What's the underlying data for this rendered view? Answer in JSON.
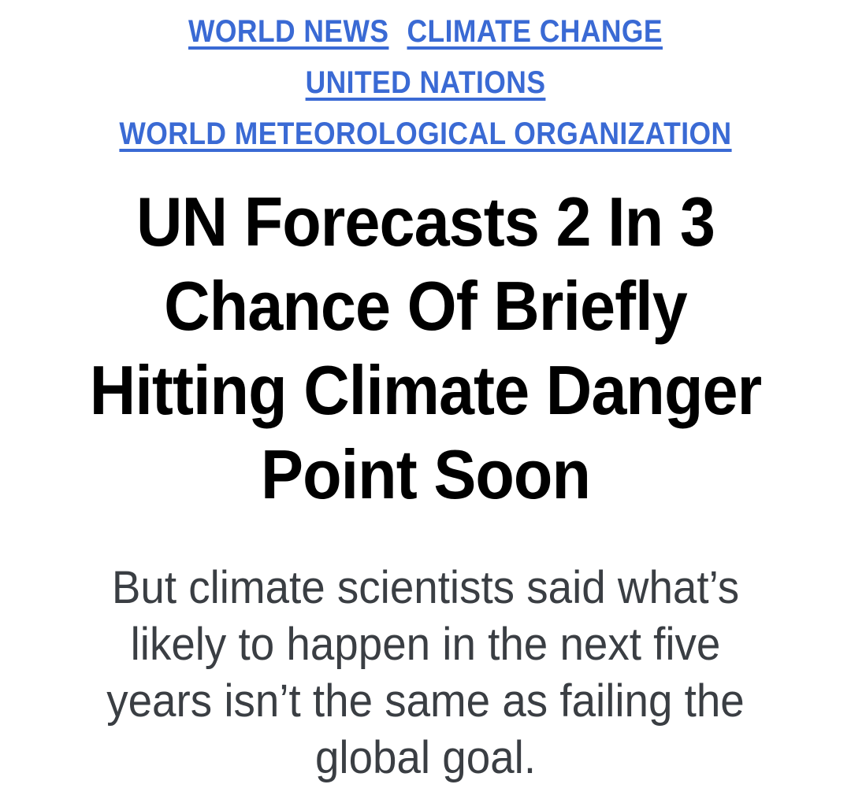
{
  "page": {
    "background_color": "#ffffff"
  },
  "tags": {
    "link_color": "#3A6AD4",
    "items": [
      {
        "label": "WORLD NEWS"
      },
      {
        "label": "CLIMATE CHANGE"
      },
      {
        "label": "UNITED NATIONS"
      },
      {
        "label": "WORLD METEOROLOGICAL ORGANIZATION"
      }
    ]
  },
  "headline": {
    "color": "#000000",
    "lines": [
      "UN Forecasts 2 In 3",
      "Chance Of Briefly",
      "Hitting Climate Danger",
      "Point Soon"
    ]
  },
  "dek": {
    "color": "#3A3E43",
    "lines": [
      "But climate scientists said what’s",
      "likely to happen in the next five",
      "years isn’t the same as failing the",
      "global goal."
    ]
  }
}
